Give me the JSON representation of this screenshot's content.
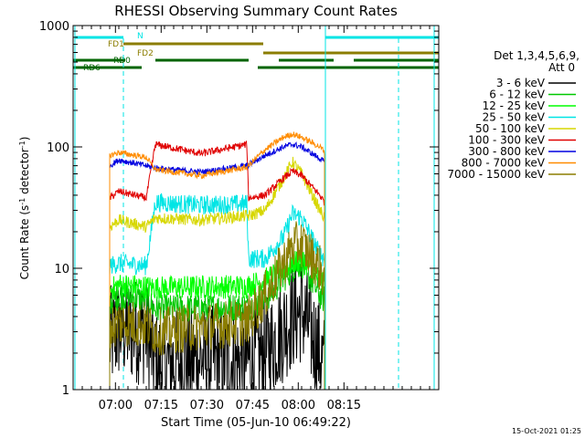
{
  "chart_data": {
    "type": "line",
    "title": "RHESSI Observing Summary Count Rates",
    "xlabel": "Start Time (05-Jun-10 06:49:22)",
    "ylabel_main": "Count Rate (s",
    "ylabel_sup1": "-1",
    "ylabel_mid": " detector",
    "ylabel_sup2": "-1",
    "ylabel_end": ")",
    "x_unit": "minutes after 06:49:22",
    "xlim": [
      0,
      40
    ],
    "ylim": [
      1,
      1000
    ],
    "yscale": "log",
    "x_ticks": [
      {
        "pos": 4.63,
        "label": "07:00"
      },
      {
        "pos": 9.63,
        "label": "07:15"
      },
      {
        "pos": 14.63,
        "label": "07:30"
      },
      {
        "pos": 19.63,
        "label": "07:45"
      },
      {
        "pos": 24.63,
        "label": "08:00"
      },
      {
        "pos": 29.63,
        "label": "08:15"
      }
    ],
    "y_ticks": [
      {
        "v": 1,
        "label": "1"
      },
      {
        "v": 10,
        "label": "10"
      },
      {
        "v": 100,
        "label": "100"
      },
      {
        "v": 1000,
        "label": "1000"
      }
    ],
    "legend_header": [
      "Det 1,3,4,5,6,9,",
      "Att 0"
    ],
    "legend_position": "right",
    "timestamp": "15-Oct-2021 01:25",
    "night_solid": [
      0.2,
      27.6,
      39.5
    ],
    "night_dashed": [
      5.5,
      35.6
    ],
    "flag_bars": [
      {
        "label": "N",
        "color": "#00e5e5",
        "segments": [
          [
            0.2,
            5.5
          ],
          [
            27.6,
            40
          ]
        ]
      },
      {
        "label": "FD1",
        "color": "#8b7d00",
        "segments": [
          [
            5.5,
            20.8
          ]
        ]
      },
      {
        "label": "FD2",
        "color": "#8b7d00",
        "segments": [
          [
            20.8,
            40
          ]
        ]
      },
      {
        "label": "RD0",
        "color": "#006400",
        "segments": [
          [
            0,
            5.7
          ],
          [
            9.0,
            19.2
          ],
          [
            22.5,
            28.5
          ],
          [
            30.7,
            40
          ]
        ]
      },
      {
        "label": "RD6",
        "color": "#006400",
        "segments": [
          [
            0,
            7.5
          ],
          [
            20.2,
            40
          ]
        ]
      }
    ],
    "data_start": 4.0,
    "data_end": 27.5,
    "attenuator_step": 9.0,
    "step2": 19.2,
    "peak_time": 24.0,
    "series": [
      {
        "name": "3 - 6 keV",
        "color": "#000000",
        "anchors": [
          [
            4,
            2.5
          ],
          [
            5,
            3.2
          ],
          [
            8,
            3.0
          ],
          [
            9,
            1.6
          ],
          [
            14,
            1.8
          ],
          [
            19,
            1.7
          ],
          [
            21,
            2.0
          ],
          [
            24,
            4.0
          ],
          [
            25,
            4.5
          ],
          [
            27,
            2.0
          ],
          [
            27.5,
            1.5
          ]
        ],
        "noise": 0.45
      },
      {
        "name": "6 - 12 keV",
        "color": "#00c800",
        "anchors": [
          [
            4,
            5.2
          ],
          [
            5,
            6.0
          ],
          [
            8,
            5.5
          ],
          [
            9,
            4.6
          ],
          [
            14,
            4.7
          ],
          [
            19,
            4.8
          ],
          [
            21,
            5.5
          ],
          [
            24,
            10.0
          ],
          [
            25,
            11.0
          ],
          [
            27,
            6.0
          ],
          [
            27.5,
            5.5
          ]
        ],
        "noise": 0.12
      },
      {
        "name": "12 - 25 keV",
        "color": "#00ff00",
        "anchors": [
          [
            4,
            6.6
          ],
          [
            5,
            7.3
          ],
          [
            8,
            7.0
          ],
          [
            9,
            6.9
          ],
          [
            14,
            7.0
          ],
          [
            19,
            7.1
          ],
          [
            21,
            8.0
          ],
          [
            24,
            11.0
          ],
          [
            25,
            12.0
          ],
          [
            27,
            8.0
          ],
          [
            27.5,
            7.5
          ]
        ],
        "noise": 0.1
      },
      {
        "name": "25 - 50 keV",
        "color": "#00e5e5",
        "anchors": [
          [
            4,
            10.5
          ],
          [
            5,
            11.0
          ],
          [
            8,
            10.5
          ],
          [
            9,
            35.0
          ],
          [
            14,
            33.0
          ],
          [
            19,
            34.0
          ],
          [
            19.2,
            12.0
          ],
          [
            21,
            12.0
          ],
          [
            23,
            18.0
          ],
          [
            24,
            28.0
          ],
          [
            25,
            26.0
          ],
          [
            27,
            13.0
          ],
          [
            27.5,
            12.0
          ]
        ],
        "noise": 0.08
      },
      {
        "name": "50 - 100 keV",
        "color": "#d7d700",
        "anchors": [
          [
            4,
            22.0
          ],
          [
            5,
            25.0
          ],
          [
            8,
            22.0
          ],
          [
            9,
            26.0
          ],
          [
            14,
            25.0
          ],
          [
            19,
            27.0
          ],
          [
            19.2,
            27.0
          ],
          [
            21,
            30.0
          ],
          [
            23,
            55.0
          ],
          [
            24,
            75.0
          ],
          [
            25,
            60.0
          ],
          [
            27,
            30.0
          ],
          [
            27.5,
            26.0
          ]
        ],
        "noise": 0.05
      },
      {
        "name": "100 - 300 keV",
        "color": "#e00000",
        "anchors": [
          [
            4,
            38.0
          ],
          [
            5,
            43.0
          ],
          [
            8,
            38.0
          ],
          [
            9,
            105.0
          ],
          [
            14,
            88.0
          ],
          [
            19,
            105.0
          ],
          [
            19.2,
            38.0
          ],
          [
            21,
            40.0
          ],
          [
            23,
            55.0
          ],
          [
            24,
            63.0
          ],
          [
            25,
            58.0
          ],
          [
            27,
            40.0
          ],
          [
            27.5,
            35.0
          ]
        ],
        "noise": 0.03
      },
      {
        "name": "300 - 800 keV",
        "color": "#0000e0",
        "anchors": [
          [
            4,
            70.0
          ],
          [
            5,
            78.0
          ],
          [
            8,
            70.0
          ],
          [
            9,
            67.0
          ],
          [
            14,
            62.0
          ],
          [
            19,
            70.0
          ],
          [
            21,
            85.0
          ],
          [
            23,
            100.0
          ],
          [
            24,
            105.0
          ],
          [
            25,
            100.0
          ],
          [
            27,
            80.0
          ],
          [
            27.5,
            75.0
          ]
        ],
        "noise": 0.025
      },
      {
        "name": "800 - 7000 keV",
        "color": "#ff8c00",
        "anchors": [
          [
            4,
            85.0
          ],
          [
            5,
            90.0
          ],
          [
            8,
            82.0
          ],
          [
            9,
            65.0
          ],
          [
            14,
            58.0
          ],
          [
            19,
            68.0
          ],
          [
            21,
            95.0
          ],
          [
            23,
            120.0
          ],
          [
            24,
            128.0
          ],
          [
            25,
            120.0
          ],
          [
            27,
            100.0
          ],
          [
            27.5,
            92.0
          ]
        ],
        "noise": 0.025
      },
      {
        "name": "7000 - 15000 keV",
        "color": "#8b7d00",
        "anchors": [
          [
            4,
            3.2
          ],
          [
            5,
            3.6
          ],
          [
            8,
            3.4
          ],
          [
            9,
            3.0
          ],
          [
            14,
            3.3
          ],
          [
            19,
            3.6
          ],
          [
            21,
            6.0
          ],
          [
            24,
            15.0
          ],
          [
            25,
            16.0
          ],
          [
            27,
            10.0
          ],
          [
            27.5,
            8.0
          ]
        ],
        "noise": 0.2
      }
    ]
  }
}
